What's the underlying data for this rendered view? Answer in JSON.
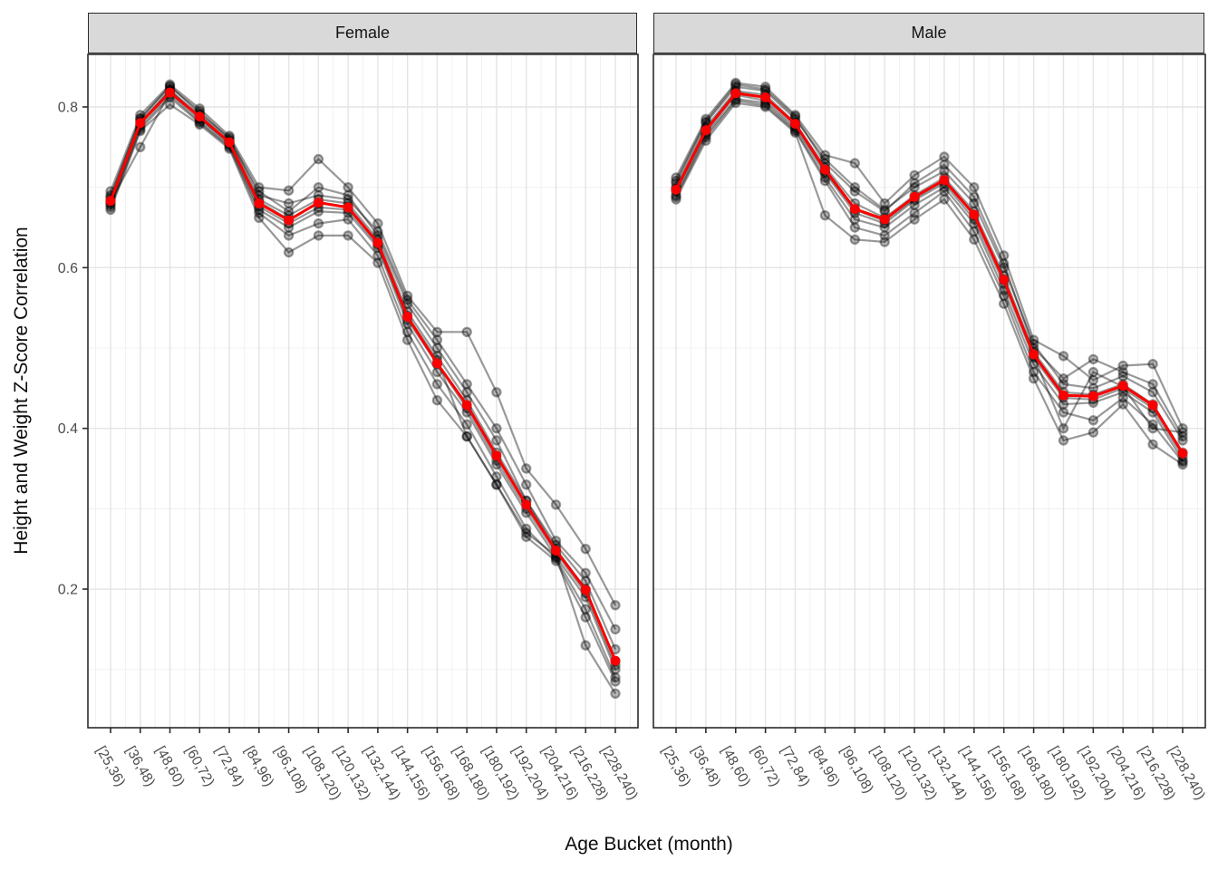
{
  "chart_data": {
    "type": "line",
    "faceted": true,
    "facet_labels": [
      "Female",
      "Male"
    ],
    "xlabel": "Age Bucket (month)",
    "ylabel": "Height and Weight Z-Score Correlation",
    "categories": [
      "[25,36)",
      "[36,48)",
      "[48,60)",
      "[60,72)",
      "[72,84)",
      "[84,96)",
      "[96,108)",
      "[108,120)",
      "[120,132)",
      "[132,144)",
      "[144,156)",
      "[156,168)",
      "[168,180)",
      "[180,192)",
      "[192,204)",
      "[204,216)",
      "[216,228)",
      "[228,240)"
    ],
    "ytick_labels": [
      "0.2",
      "0.4",
      "0.6",
      "0.8"
    ],
    "ytick_values": [
      0.2,
      0.4,
      0.6,
      0.8
    ],
    "y_minor_values": [
      0.1,
      0.3,
      0.5,
      0.7
    ],
    "ylim": [
      0.027,
      0.865
    ],
    "grid": "on",
    "legend": "none",
    "series_roles": {
      "red": "mean across individual series",
      "gray": "individual semi-transparent series"
    },
    "facets": [
      {
        "label": "Female",
        "mean": [
          0.683,
          0.78,
          0.818,
          0.788,
          0.756,
          0.68,
          0.659,
          0.681,
          0.675,
          0.631,
          0.539,
          0.481,
          0.429,
          0.366,
          0.305,
          0.248,
          0.199,
          0.111
        ],
        "individuals": [
          [
            0.69,
            0.785,
            0.825,
            0.795,
            0.76,
            0.695,
            0.67,
            0.7,
            0.69,
            0.64,
            0.555,
            0.5,
            0.445,
            0.385,
            0.31,
            0.255,
            0.21,
            0.125
          ],
          [
            0.678,
            0.775,
            0.815,
            0.782,
            0.752,
            0.672,
            0.65,
            0.67,
            0.668,
            0.625,
            0.53,
            0.47,
            0.42,
            0.355,
            0.295,
            0.24,
            0.19,
            0.1
          ],
          [
            0.695,
            0.79,
            0.828,
            0.798,
            0.764,
            0.7,
            0.696,
            0.735,
            0.7,
            0.655,
            0.565,
            0.52,
            0.52,
            0.445,
            0.35,
            0.305,
            0.25,
            0.18
          ],
          [
            0.672,
            0.77,
            0.803,
            0.778,
            0.748,
            0.662,
            0.619,
            0.64,
            0.64,
            0.606,
            0.51,
            0.435,
            0.39,
            0.33,
            0.265,
            0.235,
            0.165,
            0.085
          ],
          [
            0.685,
            0.782,
            0.82,
            0.79,
            0.758,
            0.685,
            0.665,
            0.685,
            0.68,
            0.635,
            0.545,
            0.49,
            0.435,
            0.37,
            0.31,
            0.25,
            0.2,
            0.11
          ],
          [
            0.68,
            0.778,
            0.822,
            0.786,
            0.754,
            0.676,
            0.655,
            0.675,
            0.672,
            0.628,
            0.535,
            0.48,
            0.425,
            0.36,
            0.3,
            0.245,
            0.195,
            0.105
          ],
          [
            0.688,
            0.786,
            0.826,
            0.792,
            0.762,
            0.69,
            0.68,
            0.69,
            0.685,
            0.645,
            0.56,
            0.51,
            0.455,
            0.4,
            0.33,
            0.26,
            0.22,
            0.15
          ],
          [
            0.675,
            0.772,
            0.812,
            0.78,
            0.75,
            0.668,
            0.64,
            0.655,
            0.66,
            0.615,
            0.52,
            0.455,
            0.405,
            0.34,
            0.275,
            0.238,
            0.175,
            0.09
          ],
          [
            0.682,
            0.75,
            0.818,
            0.785,
            0.756,
            0.682,
            0.66,
            0.68,
            0.676,
            0.63,
            0.54,
            0.485,
            0.39,
            0.33,
            0.27,
            0.242,
            0.13,
            0.07
          ]
        ]
      },
      {
        "label": "Male",
        "mean": [
          0.697,
          0.771,
          0.817,
          0.812,
          0.779,
          0.722,
          0.673,
          0.66,
          0.688,
          0.709,
          0.666,
          0.585,
          0.492,
          0.441,
          0.44,
          0.453,
          0.429,
          0.369
        ],
        "individuals": [
          [
            0.705,
            0.78,
            0.825,
            0.82,
            0.785,
            0.735,
            0.7,
            0.672,
            0.7,
            0.72,
            0.68,
            0.6,
            0.505,
            0.455,
            0.45,
            0.465,
            0.445,
            0.385
          ],
          [
            0.69,
            0.765,
            0.81,
            0.805,
            0.772,
            0.712,
            0.66,
            0.65,
            0.678,
            0.7,
            0.655,
            0.572,
            0.48,
            0.43,
            0.432,
            0.445,
            0.42,
            0.36
          ],
          [
            0.712,
            0.785,
            0.83,
            0.825,
            0.79,
            0.74,
            0.73,
            0.68,
            0.715,
            0.738,
            0.7,
            0.615,
            0.51,
            0.49,
            0.46,
            0.478,
            0.48,
            0.4
          ],
          [
            0.685,
            0.758,
            0.805,
            0.8,
            0.768,
            0.665,
            0.635,
            0.632,
            0.66,
            0.685,
            0.635,
            0.555,
            0.462,
            0.385,
            0.395,
            0.43,
            0.38,
            0.355
          ],
          [
            0.7,
            0.775,
            0.82,
            0.815,
            0.78,
            0.725,
            0.68,
            0.662,
            0.69,
            0.712,
            0.67,
            0.59,
            0.495,
            0.445,
            0.442,
            0.455,
            0.43,
            0.37
          ],
          [
            0.695,
            0.768,
            0.815,
            0.808,
            0.775,
            0.718,
            0.668,
            0.655,
            0.684,
            0.705,
            0.66,
            0.58,
            0.488,
            0.438,
            0.436,
            0.45,
            0.425,
            0.365
          ],
          [
            0.708,
            0.782,
            0.828,
            0.822,
            0.788,
            0.73,
            0.695,
            0.67,
            0.705,
            0.728,
            0.688,
            0.605,
            0.5,
            0.462,
            0.486,
            0.47,
            0.455,
            0.39
          ],
          [
            0.688,
            0.762,
            0.808,
            0.802,
            0.77,
            0.708,
            0.65,
            0.64,
            0.668,
            0.695,
            0.645,
            0.565,
            0.47,
            0.42,
            0.41,
            0.438,
            0.405,
            0.358
          ],
          [
            0.698,
            0.772,
            0.818,
            0.812,
            0.778,
            0.72,
            0.672,
            0.658,
            0.686,
            0.708,
            0.665,
            0.585,
            0.49,
            0.4,
            0.47,
            0.452,
            0.4,
            0.395
          ]
        ]
      }
    ],
    "colors": {
      "mean_line": "#fa0000",
      "individual_line": "rgba(0,0,0,0.40)",
      "individual_point_fill": "rgba(0,0,0,0.28)",
      "individual_point_stroke": "rgba(0,0,0,0.38)",
      "grid_major": "#e4e4e4",
      "grid_minor": "#f0f0f0",
      "panel_bg": "#ffffff",
      "strip_bg": "#d9d9d9",
      "border": "#2b2b2b",
      "tick_text": "#4d4d4d"
    }
  }
}
